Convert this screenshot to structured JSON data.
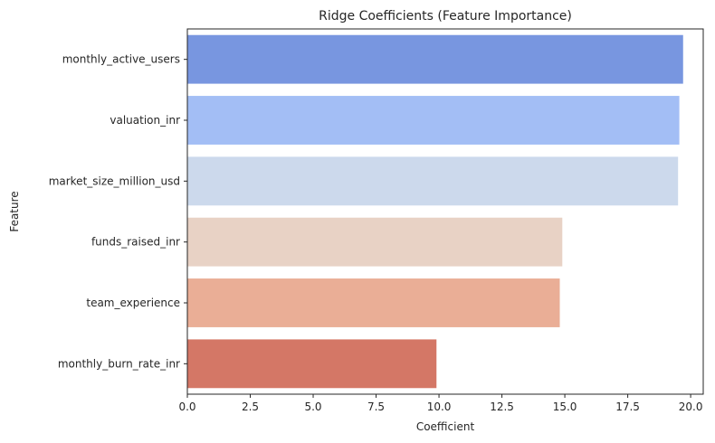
{
  "chart_data": {
    "type": "bar",
    "orientation": "horizontal",
    "title": "Ridge Coefficients (Feature Importance)",
    "xlabel": "Coefficient",
    "ylabel": "Feature",
    "xlim": [
      0,
      20.5
    ],
    "xticks": [
      "0.0",
      "2.5",
      "5.0",
      "7.5",
      "10.0",
      "12.5",
      "15.0",
      "17.5",
      "20.0"
    ],
    "grid": false,
    "categories": [
      "monthly_active_users",
      "valuation_inr",
      "market_size_million_usd",
      "funds_raised_inr",
      "team_experience",
      "monthly_burn_rate_inr"
    ],
    "values": [
      19.7,
      19.55,
      19.5,
      14.9,
      14.8,
      9.9
    ],
    "colors": [
      "#7896e0",
      "#a3bef5",
      "#ccd9ec",
      "#e8d2c5",
      "#eaae96",
      "#d47766"
    ]
  }
}
